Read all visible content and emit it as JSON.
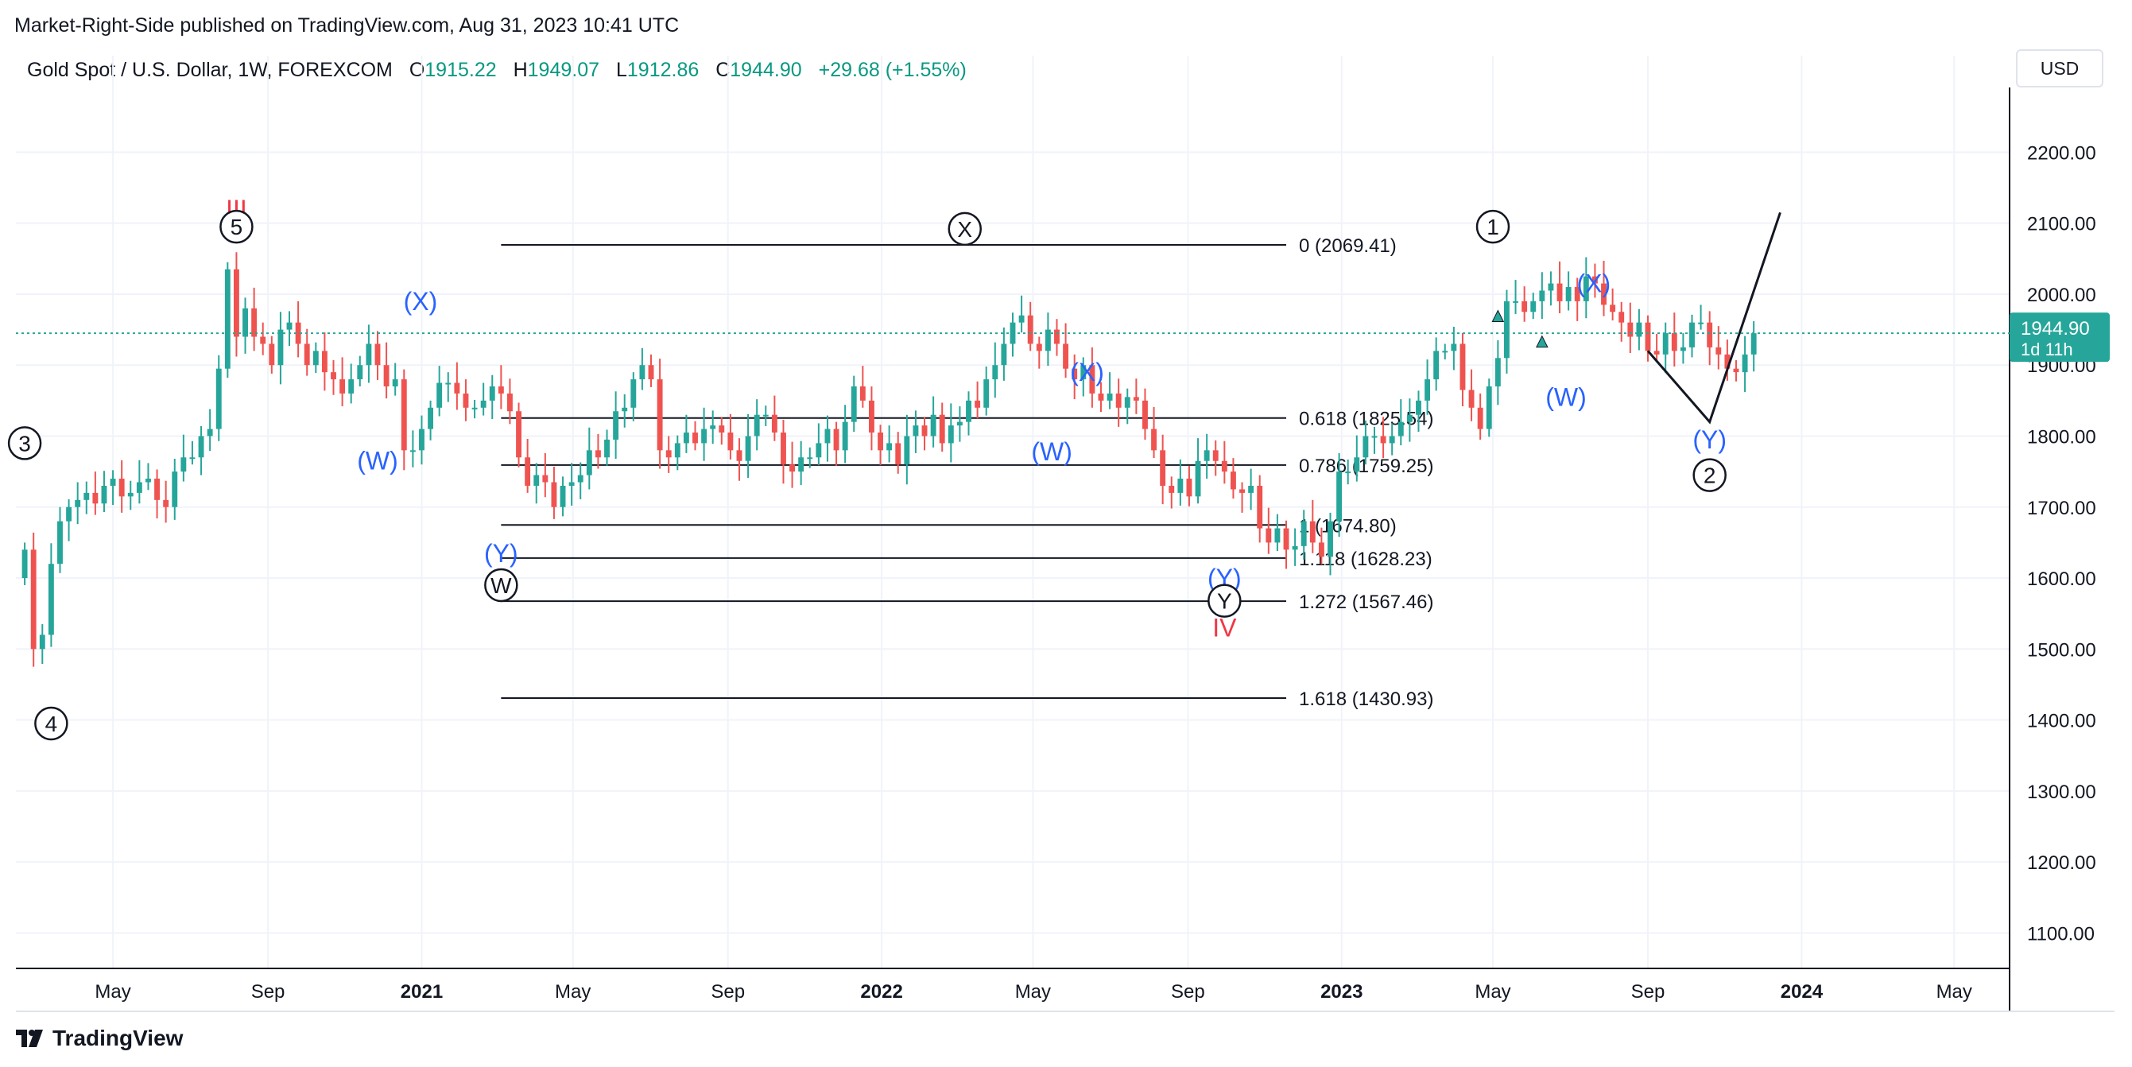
{
  "published": "Market-Right-Side published on TradingView.com, Aug 31, 2023 10:41 UTC",
  "legend": {
    "symbol": "Gold Spot / U.S. Dollar, 1W, FOREXCOM",
    "open_label": "O",
    "open": "1915.22",
    "high_label": "H",
    "high": "1949.07",
    "low_label": "L",
    "low": "1912.86",
    "close_label": "C",
    "close": "1944.90",
    "change": "+29.68 (+1.55%)"
  },
  "currency": "USD",
  "branding": "TradingView",
  "colors": {
    "up": "#26a69a",
    "down": "#ef5350",
    "wave_blue": "#2962ff",
    "wave_red": "#f23645",
    "text": "#131722",
    "grid": "#f0f3fa"
  },
  "chart_data": {
    "type": "candlestick",
    "title": "Gold Spot / U.S. Dollar, 1W, FOREXCOM",
    "ylim": [
      1050,
      2280
    ],
    "y_ticks": [
      1100,
      1200,
      1300,
      1400,
      1500,
      1600,
      1700,
      1800,
      1900,
      2000,
      2100,
      2200
    ],
    "y_tick_labels": [
      "1100.00",
      "1200.00",
      "1300.00",
      "1400.00",
      "1500.00",
      "1600.00",
      "1700.00",
      "1800.00",
      "1900.00",
      "2000.00",
      "2100.00",
      "2200.00"
    ],
    "x_start": "2020-02-14",
    "x_end": "2024-06-14",
    "x_ticks": [
      {
        "date": "2020-05-01",
        "label": "May",
        "bold": false
      },
      {
        "date": "2020-09-01",
        "label": "Sep",
        "bold": false
      },
      {
        "date": "2021-01-01",
        "label": "2021",
        "bold": true
      },
      {
        "date": "2021-05-01",
        "label": "May",
        "bold": false
      },
      {
        "date": "2021-09-01",
        "label": "Sep",
        "bold": false
      },
      {
        "date": "2022-01-01",
        "label": "2022",
        "bold": true
      },
      {
        "date": "2022-05-01",
        "label": "May",
        "bold": false
      },
      {
        "date": "2022-09-01",
        "label": "Sep",
        "bold": false
      },
      {
        "date": "2023-01-01",
        "label": "2023",
        "bold": true
      },
      {
        "date": "2023-05-01",
        "label": "May",
        "bold": false
      },
      {
        "date": "2023-09-01",
        "label": "Sep",
        "bold": false
      },
      {
        "date": "2024-01-01",
        "label": "2024",
        "bold": true
      },
      {
        "date": "2024-05-01",
        "label": "May",
        "bold": false
      }
    ],
    "candles_start": "2020-02-21",
    "weekly_close": [
      1640,
      1500,
      1520,
      1620,
      1680,
      1700,
      1710,
      1720,
      1705,
      1730,
      1740,
      1715,
      1720,
      1735,
      1740,
      1710,
      1700,
      1750,
      1770,
      1770,
      1800,
      1810,
      1895,
      2035,
      1940,
      1980,
      1940,
      1930,
      1900,
      1950,
      1960,
      1930,
      1900,
      1920,
      1890,
      1880,
      1860,
      1880,
      1900,
      1930,
      1900,
      1870,
      1880,
      1780,
      1780,
      1810,
      1840,
      1875,
      1875,
      1860,
      1840,
      1840,
      1850,
      1870,
      1860,
      1835,
      1770,
      1730,
      1745,
      1735,
      1700,
      1730,
      1735,
      1745,
      1780,
      1770,
      1795,
      1835,
      1840,
      1880,
      1900,
      1880,
      1780,
      1770,
      1790,
      1805,
      1790,
      1810,
      1815,
      1805,
      1780,
      1765,
      1800,
      1830,
      1830,
      1805,
      1760,
      1750,
      1770,
      1770,
      1790,
      1810,
      1780,
      1820,
      1870,
      1850,
      1805,
      1780,
      1790,
      1760,
      1800,
      1815,
      1800,
      1830,
      1790,
      1815,
      1820,
      1850,
      1840,
      1880,
      1900,
      1930,
      1960,
      1970,
      1930,
      1920,
      1950,
      1930,
      1895,
      1880,
      1900,
      1860,
      1850,
      1860,
      1840,
      1855,
      1850,
      1810,
      1780,
      1730,
      1720,
      1740,
      1715,
      1765,
      1780,
      1765,
      1750,
      1725,
      1720,
      1730,
      1670,
      1650,
      1670,
      1640,
      1645,
      1680,
      1650,
      1630,
      1680,
      1750,
      1750,
      1770,
      1800,
      1800,
      1790,
      1800,
      1820,
      1830,
      1850,
      1880,
      1920,
      1920,
      1930,
      1865,
      1840,
      1810,
      1870,
      1910,
      1990,
      1990,
      1975,
      1990,
      2005,
      2015,
      1990,
      2010,
      1990,
      2025,
      2015,
      1985,
      1975,
      1960,
      1940,
      1960,
      1920,
      1915,
      1945,
      1920,
      1925,
      1960,
      1960,
      1925,
      1915,
      1895,
      1890,
      1915,
      1944.9
    ],
    "fib_levels": [
      {
        "ratio": "0",
        "price": 2069.41,
        "label": "0 (2069.41)"
      },
      {
        "ratio": "0.618",
        "price": 1825.54,
        "label": "0.618 (1825.54)"
      },
      {
        "ratio": "0.786",
        "price": 1759.25,
        "label": "0.786 (1759.25)"
      },
      {
        "ratio": "1",
        "price": 1674.8,
        "label": "1 (1674.80)"
      },
      {
        "ratio": "1.118",
        "price": 1628.23,
        "label": "1.118 (1628.23)"
      },
      {
        "ratio": "1.272",
        "price": 1567.46,
        "label": "1.272 (1567.46)"
      },
      {
        "ratio": "1.618",
        "price": 1430.93,
        "label": "1.618 (1430.93)"
      }
    ],
    "fib_start": "2021-03-05",
    "fib_end": "2022-11-18",
    "last_price": {
      "value": 1944.9,
      "label": "1944.90",
      "countdown": "1d 11h"
    },
    "projection": [
      {
        "date": "2023-09-01",
        "price": 1920
      },
      {
        "date": "2023-10-20",
        "price": 1820
      },
      {
        "date": "2023-12-15",
        "price": 2115
      }
    ],
    "wave_labels": [
      {
        "text": "3",
        "style": "circle",
        "date": "2020-02-21",
        "price": 1790
      },
      {
        "text": "4",
        "style": "circle",
        "date": "2020-03-13",
        "price": 1395
      },
      {
        "text": "III",
        "style": "red",
        "date": "2020-08-07",
        "price": 2120
      },
      {
        "text": "5",
        "style": "circle",
        "date": "2020-08-07",
        "price": 2095
      },
      {
        "text": "(W)",
        "style": "blue",
        "date": "2020-11-27",
        "price": 1765
      },
      {
        "text": "(X)",
        "style": "blue",
        "date": "2020-12-31",
        "price": 1990
      },
      {
        "text": "(Y)",
        "style": "blue",
        "date": "2021-03-05",
        "price": 1635
      },
      {
        "text": "W",
        "style": "circle",
        "date": "2021-03-05",
        "price": 1590
      },
      {
        "text": "X",
        "style": "circle",
        "date": "2022-03-08",
        "price": 2092
      },
      {
        "text": "(X)",
        "style": "blue",
        "date": "2022-06-13",
        "price": 1890
      },
      {
        "text": "(W)",
        "style": "blue",
        "date": "2022-05-16",
        "price": 1778
      },
      {
        "text": "(Y)",
        "style": "blue",
        "date": "2022-09-30",
        "price": 1600
      },
      {
        "text": "Y",
        "style": "circle",
        "date": "2022-09-30",
        "price": 1568
      },
      {
        "text": "IV",
        "style": "red",
        "date": "2022-09-30",
        "price": 1530
      },
      {
        "text": "1",
        "style": "circle",
        "date": "2023-05-01",
        "price": 2095
      },
      {
        "text": "(X)",
        "style": "blue",
        "date": "2023-07-20",
        "price": 2015
      },
      {
        "text": "(W)",
        "style": "blue",
        "date": "2023-06-28",
        "price": 1855
      },
      {
        "text": "(Y)",
        "style": "blue",
        "date": "2023-10-20",
        "price": 1795
      },
      {
        "text": "2",
        "style": "circle",
        "date": "2023-10-20",
        "price": 1745
      }
    ],
    "markers": [
      {
        "date": "2023-05-05",
        "price": 1968
      },
      {
        "date": "2023-06-09",
        "price": 1932
      }
    ]
  }
}
